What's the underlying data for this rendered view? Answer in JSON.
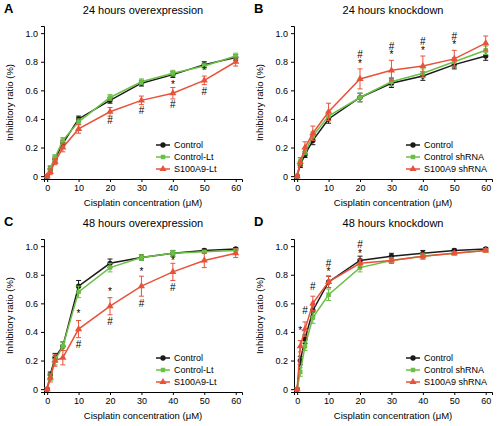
{
  "chart_data": [
    {
      "type": "line",
      "panel_label": "A",
      "title": "24 hours overexpression",
      "x_label": "Cisplatin concentration (μM)",
      "y_label": "Inhibitory ratio (%)",
      "x": [
        0,
        1,
        2.5,
        5,
        10,
        20,
        30,
        40,
        50,
        60
      ],
      "xlim": [
        -1,
        62
      ],
      "xticks": [
        0,
        10,
        20,
        30,
        40,
        50,
        60
      ],
      "ylim": [
        -0.02,
        1.05
      ],
      "yticks": [
        0,
        0.2,
        0.4,
        0.6,
        0.8,
        {
          "value": 1,
          "label": "1.0"
        }
      ],
      "legend": "lower right",
      "series": [
        {
          "name": "Control",
          "color": "#1a1a1a",
          "marker": "circle",
          "values": [
            0,
            0.05,
            0.12,
            0.23,
            0.4,
            0.53,
            0.65,
            0.71,
            0.78,
            0.83
          ],
          "errors": [
            0.01,
            0.02,
            0.02,
            0.02,
            0.02,
            0.02,
            0.02,
            0.02,
            0.02,
            0.02
          ]
        },
        {
          "name": "Control-Lt",
          "color": "#6cbf45",
          "marker": "square",
          "values": [
            0,
            0.05,
            0.13,
            0.25,
            0.38,
            0.55,
            0.66,
            0.72,
            0.77,
            0.84
          ],
          "errors": [
            0.01,
            0.02,
            0.02,
            0.02,
            0.02,
            0.02,
            0.02,
            0.02,
            0.02,
            0.02
          ]
        },
        {
          "name": "S100A9-Lt",
          "color": "#e8523a",
          "marker": "triangle",
          "values": [
            0,
            0.03,
            0.1,
            0.2,
            0.33,
            0.45,
            0.53,
            0.58,
            0.67,
            0.8
          ],
          "errors": [
            0.01,
            0.02,
            0.02,
            0.03,
            0.03,
            0.03,
            0.03,
            0.04,
            0.03,
            0.03
          ]
        }
      ],
      "annotations": [
        {
          "text": "#",
          "x": 20,
          "y": 0.39
        },
        {
          "text": "#",
          "x": 30,
          "y": 0.46
        },
        {
          "text": "*",
          "x": 40,
          "y": 0.64
        },
        {
          "text": "#",
          "x": 40,
          "y": 0.5
        },
        {
          "text": "*",
          "x": 50,
          "y": 0.74
        },
        {
          "text": "#",
          "x": 50,
          "y": 0.59
        }
      ]
    },
    {
      "type": "line",
      "panel_label": "B",
      "title": "24 hours knockdown",
      "x_label": "Cisplatin concentration (μM)",
      "y_label": "Inhibitory ratio (%)",
      "x": [
        0,
        1,
        2.5,
        5,
        10,
        20,
        30,
        40,
        50,
        60
      ],
      "xlim": [
        -1,
        62
      ],
      "xticks": [
        0,
        10,
        20,
        30,
        40,
        50,
        60
      ],
      "ylim": [
        -0.02,
        1.05
      ],
      "yticks": [
        0,
        0.2,
        0.4,
        0.6,
        0.8,
        {
          "value": 1,
          "label": "1.0"
        }
      ],
      "legend": "lower right",
      "series": [
        {
          "name": "Control",
          "color": "#1a1a1a",
          "marker": "circle",
          "values": [
            0,
            0.08,
            0.15,
            0.25,
            0.4,
            0.55,
            0.65,
            0.7,
            0.78,
            0.84
          ],
          "errors": [
            0.01,
            0.02,
            0.02,
            0.03,
            0.03,
            0.03,
            0.03,
            0.03,
            0.03,
            0.03
          ]
        },
        {
          "name": "Control shRNA",
          "color": "#6cbf45",
          "marker": "square",
          "values": [
            0,
            0.1,
            0.17,
            0.28,
            0.42,
            0.55,
            0.66,
            0.72,
            0.8,
            0.88
          ],
          "errors": [
            0.01,
            0.02,
            0.02,
            0.03,
            0.03,
            0.03,
            0.03,
            0.03,
            0.03,
            0.03
          ]
        },
        {
          "name": "S100A9 shRNA",
          "color": "#e8523a",
          "marker": "triangle",
          "values": [
            0,
            0.1,
            0.2,
            0.3,
            0.45,
            0.68,
            0.74,
            0.77,
            0.82,
            0.93
          ],
          "errors": [
            0.01,
            0.03,
            0.04,
            0.05,
            0.06,
            0.07,
            0.07,
            0.07,
            0.06,
            0.05
          ]
        }
      ],
      "annotations": [
        {
          "text": "*",
          "x": 20,
          "y": 0.79
        },
        {
          "text": "#",
          "x": 20,
          "y": 0.85
        },
        {
          "text": "*",
          "x": 30,
          "y": 0.85
        },
        {
          "text": "#",
          "x": 30,
          "y": 0.91
        },
        {
          "text": "*",
          "x": 40,
          "y": 0.88
        },
        {
          "text": "#",
          "x": 40,
          "y": 0.94
        },
        {
          "text": "*",
          "x": 50,
          "y": 0.92
        },
        {
          "text": "#",
          "x": 50,
          "y": 0.98
        }
      ]
    },
    {
      "type": "line",
      "panel_label": "C",
      "title": "48 hours overexpression",
      "x_label": "Cisplatin concentration (μM)",
      "y_label": "Inhibitory ratio (%)",
      "x": [
        0,
        1,
        2.5,
        5,
        10,
        20,
        30,
        40,
        50,
        60
      ],
      "xlim": [
        -1,
        62
      ],
      "xticks": [
        0,
        10,
        20,
        30,
        40,
        50,
        60
      ],
      "ylim": [
        -0.02,
        1.05
      ],
      "yticks": [
        0,
        0.2,
        0.4,
        0.6,
        0.8,
        {
          "value": 1,
          "label": "1.0"
        }
      ],
      "legend": "lower right",
      "series": [
        {
          "name": "Control",
          "color": "#1a1a1a",
          "marker": "circle",
          "values": [
            0,
            0.1,
            0.22,
            0.3,
            0.72,
            0.88,
            0.92,
            0.95,
            0.97,
            0.98
          ],
          "errors": [
            0.01,
            0.02,
            0.03,
            0.03,
            0.04,
            0.03,
            0.02,
            0.02,
            0.01,
            0.01
          ]
        },
        {
          "name": "Control-Lt",
          "color": "#6cbf45",
          "marker": "square",
          "values": [
            0,
            0.08,
            0.2,
            0.3,
            0.68,
            0.85,
            0.92,
            0.95,
            0.96,
            0.97
          ],
          "errors": [
            0.01,
            0.02,
            0.03,
            0.03,
            0.04,
            0.03,
            0.02,
            0.02,
            0.01,
            0.01
          ]
        },
        {
          "name": "S100A9-Lt",
          "color": "#e8523a",
          "marker": "triangle",
          "values": [
            0,
            0.08,
            0.2,
            0.22,
            0.42,
            0.58,
            0.72,
            0.82,
            0.9,
            0.95
          ],
          "errors": [
            0.01,
            0.03,
            0.04,
            0.05,
            0.06,
            0.06,
            0.07,
            0.06,
            0.05,
            0.03
          ]
        }
      ],
      "annotations": [
        {
          "text": "*",
          "x": 10,
          "y": 0.53
        },
        {
          "text": "#",
          "x": 10,
          "y": 0.31
        },
        {
          "text": "*",
          "x": 20,
          "y": 0.68
        },
        {
          "text": "#",
          "x": 20,
          "y": 0.47
        },
        {
          "text": "*",
          "x": 30,
          "y": 0.82
        },
        {
          "text": "#",
          "x": 30,
          "y": 0.6
        },
        {
          "text": "*",
          "x": 40,
          "y": 0.9
        },
        {
          "text": "#",
          "x": 40,
          "y": 0.71
        }
      ]
    },
    {
      "type": "line",
      "panel_label": "D",
      "title": "48 hours knockdown",
      "x_label": "Cisplatin concentration (μM)",
      "y_label": "Inhibitory ratio (%)",
      "x": [
        0,
        1,
        2.5,
        5,
        10,
        20,
        30,
        40,
        50,
        60
      ],
      "xlim": [
        -1,
        62
      ],
      "xticks": [
        0,
        10,
        20,
        30,
        40,
        50,
        60
      ],
      "ylim": [
        -0.02,
        1.05
      ],
      "yticks": [
        0,
        0.2,
        0.4,
        0.6,
        0.8,
        {
          "value": 1,
          "label": "1.0"
        }
      ],
      "legend": "lower right",
      "series": [
        {
          "name": "Control",
          "color": "#1a1a1a",
          "marker": "circle",
          "values": [
            0,
            0.2,
            0.35,
            0.55,
            0.75,
            0.9,
            0.93,
            0.95,
            0.97,
            0.98
          ],
          "errors": [
            0.01,
            0.03,
            0.03,
            0.04,
            0.04,
            0.03,
            0.02,
            0.02,
            0.01,
            0.01
          ]
        },
        {
          "name": "Control shRNA",
          "color": "#6cbf45",
          "marker": "square",
          "values": [
            0,
            0.12,
            0.3,
            0.5,
            0.66,
            0.85,
            0.9,
            0.93,
            0.95,
            0.97
          ],
          "errors": [
            0.01,
            0.03,
            0.03,
            0.04,
            0.04,
            0.03,
            0.02,
            0.02,
            0.01,
            0.01
          ]
        },
        {
          "name": "S100A9 shRNA",
          "color": "#e8523a",
          "marker": "triangle",
          "values": [
            0,
            0.3,
            0.42,
            0.6,
            0.75,
            0.88,
            0.9,
            0.93,
            0.95,
            0.97
          ],
          "errors": [
            0.01,
            0.04,
            0.05,
            0.05,
            0.04,
            0.03,
            0.02,
            0.02,
            0.01,
            0.01
          ]
        }
      ],
      "annotations": [
        {
          "text": "*",
          "x": 1,
          "y": 0.41
        },
        {
          "text": "#",
          "x": 2.5,
          "y": 0.55
        },
        {
          "text": "#",
          "x": 5,
          "y": 0.72
        },
        {
          "text": "*",
          "x": 10,
          "y": 0.82
        },
        {
          "text": "#",
          "x": 10,
          "y": 0.88
        },
        {
          "text": "*",
          "x": 20,
          "y": 0.95
        },
        {
          "text": "#",
          "x": 20,
          "y": 1.01
        }
      ]
    }
  ]
}
